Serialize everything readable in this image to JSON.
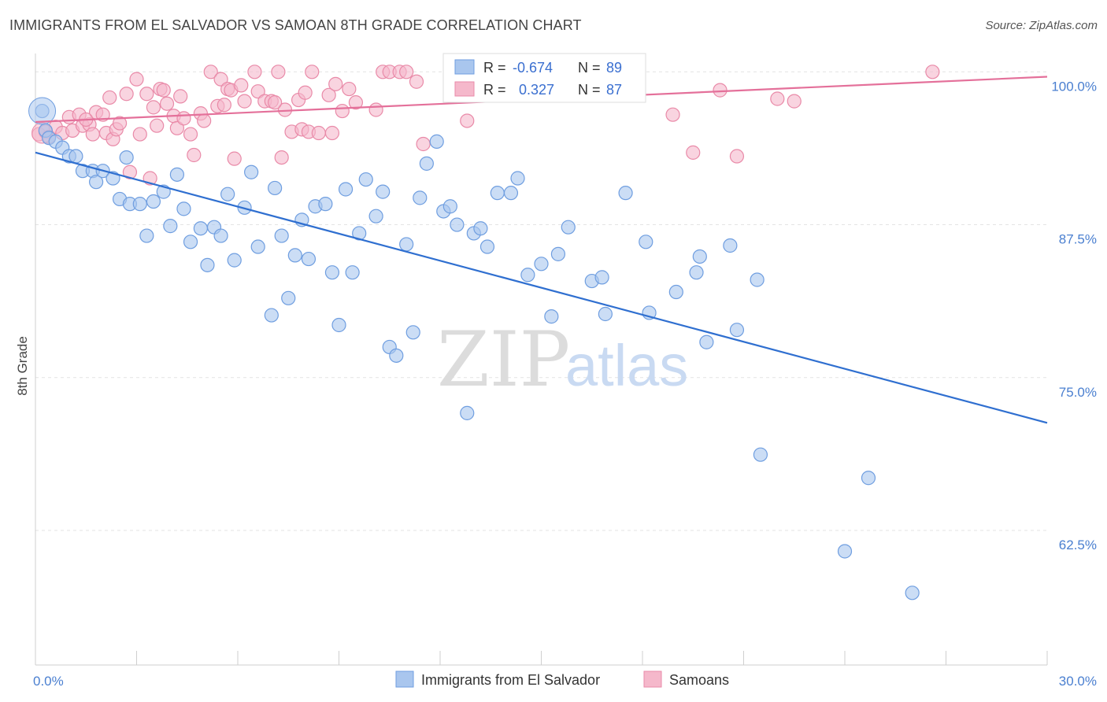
{
  "title": "IMMIGRANTS FROM EL SALVADOR VS SAMOAN 8TH GRADE CORRELATION CHART",
  "source": "Source: ZipAtlas.com",
  "watermark": {
    "zip": "ZIP",
    "atlas": "atlas"
  },
  "colors": {
    "blue_fill": "#a9c6ee",
    "blue_stroke": "#6f9ee0",
    "blue_line": "#2f6fd0",
    "pink_fill": "#f5b8cb",
    "pink_stroke": "#e98aa8",
    "pink_line": "#e4709a",
    "grid": "#e3e3e3",
    "axis_text": "#4a7fd0"
  },
  "chart_data": {
    "type": "scatter",
    "title": "IMMIGRANTS FROM EL SALVADOR VS SAMOAN 8TH GRADE CORRELATION CHART",
    "xlabel": "",
    "ylabel": "8th Grade",
    "xlim": [
      0,
      30
    ],
    "ylim": [
      51.5,
      101.5
    ],
    "x_tick_labels": [
      {
        "value": 0,
        "label": "0.0%"
      },
      {
        "value": 30,
        "label": "30.0%"
      }
    ],
    "y_ticks": [
      {
        "value": 100,
        "label": "100.0%"
      },
      {
        "value": 87.5,
        "label": "87.5%"
      },
      {
        "value": 75,
        "label": "75.0%"
      },
      {
        "value": 62.5,
        "label": "62.5%"
      }
    ],
    "grid": true,
    "legend_position": "bottom-center",
    "stats_position": "top-center",
    "series": [
      {
        "name": "Immigrants from El Salvador",
        "color": "blue",
        "R": "-0.674",
        "N": "89",
        "trend": {
          "x": [
            0,
            30
          ],
          "y": [
            93.4,
            71.3
          ]
        },
        "points": [
          [
            0.2,
            96.8
          ],
          [
            0.3,
            95.2
          ],
          [
            0.4,
            94.6
          ],
          [
            0.6,
            94.3
          ],
          [
            0.8,
            93.8
          ],
          [
            1.0,
            93.1
          ],
          [
            1.2,
            93.1
          ],
          [
            1.4,
            91.9
          ],
          [
            1.7,
            91.9
          ],
          [
            1.8,
            91.0
          ],
          [
            2.0,
            91.9
          ],
          [
            2.3,
            91.3
          ],
          [
            2.5,
            89.6
          ],
          [
            2.7,
            93.0
          ],
          [
            2.8,
            89.2
          ],
          [
            3.1,
            89.2
          ],
          [
            3.3,
            86.6
          ],
          [
            3.5,
            89.4
          ],
          [
            3.8,
            90.2
          ],
          [
            4.0,
            87.4
          ],
          [
            4.2,
            91.6
          ],
          [
            4.4,
            88.8
          ],
          [
            4.6,
            86.1
          ],
          [
            4.9,
            87.2
          ],
          [
            5.1,
            84.2
          ],
          [
            5.3,
            87.3
          ],
          [
            5.5,
            86.6
          ],
          [
            5.7,
            90.0
          ],
          [
            5.9,
            84.6
          ],
          [
            6.2,
            88.9
          ],
          [
            6.4,
            91.8
          ],
          [
            6.6,
            85.7
          ],
          [
            7.0,
            80.1
          ],
          [
            7.1,
            90.5
          ],
          [
            7.3,
            86.6
          ],
          [
            7.5,
            81.5
          ],
          [
            7.7,
            85.0
          ],
          [
            7.9,
            87.9
          ],
          [
            8.1,
            84.7
          ],
          [
            8.3,
            89.0
          ],
          [
            8.6,
            89.2
          ],
          [
            8.8,
            83.6
          ],
          [
            9.0,
            79.3
          ],
          [
            9.2,
            90.4
          ],
          [
            9.4,
            83.6
          ],
          [
            9.6,
            86.8
          ],
          [
            9.8,
            91.2
          ],
          [
            10.1,
            88.2
          ],
          [
            10.3,
            90.2
          ],
          [
            10.5,
            77.5
          ],
          [
            10.7,
            76.8
          ],
          [
            11.0,
            85.9
          ],
          [
            11.2,
            78.7
          ],
          [
            11.4,
            89.7
          ],
          [
            11.6,
            92.5
          ],
          [
            11.9,
            94.3
          ],
          [
            12.1,
            88.6
          ],
          [
            12.3,
            89.0
          ],
          [
            12.5,
            87.5
          ],
          [
            12.8,
            72.1
          ],
          [
            13.0,
            86.8
          ],
          [
            13.2,
            87.2
          ],
          [
            13.4,
            85.7
          ],
          [
            13.7,
            90.1
          ],
          [
            14.1,
            90.1
          ],
          [
            14.3,
            91.3
          ],
          [
            14.6,
            83.4
          ],
          [
            15.0,
            84.3
          ],
          [
            15.3,
            80.0
          ],
          [
            15.5,
            85.1
          ],
          [
            15.8,
            87.3
          ],
          [
            16.2,
            98.3
          ],
          [
            16.5,
            82.9
          ],
          [
            16.8,
            83.2
          ],
          [
            16.9,
            80.2
          ],
          [
            17.5,
            90.1
          ],
          [
            18.1,
            86.1
          ],
          [
            18.2,
            80.3
          ],
          [
            19.0,
            82.0
          ],
          [
            19.6,
            83.6
          ],
          [
            19.7,
            84.9
          ],
          [
            19.9,
            77.9
          ],
          [
            20.6,
            85.8
          ],
          [
            20.8,
            78.9
          ],
          [
            21.4,
            83.0
          ],
          [
            21.5,
            68.7
          ],
          [
            24.0,
            60.8
          ],
          [
            24.7,
            66.8
          ],
          [
            26.0,
            57.4
          ]
        ]
      },
      {
        "name": "Samoans",
        "color": "pink",
        "R": "0.327",
        "N": "87",
        "trend": {
          "x": [
            0,
            30
          ],
          "y": [
            95.9,
            99.6
          ]
        },
        "points": [
          [
            0.1,
            94.9
          ],
          [
            0.3,
            95.1
          ],
          [
            0.4,
            94.7
          ],
          [
            0.6,
            95.5
          ],
          [
            0.8,
            95.0
          ],
          [
            1.0,
            96.3
          ],
          [
            1.1,
            95.2
          ],
          [
            1.3,
            96.5
          ],
          [
            1.4,
            95.6
          ],
          [
            1.6,
            95.7
          ],
          [
            1.7,
            94.9
          ],
          [
            1.8,
            96.7
          ],
          [
            2.0,
            96.5
          ],
          [
            2.1,
            95.0
          ],
          [
            2.3,
            94.5
          ],
          [
            2.4,
            95.3
          ],
          [
            2.5,
            95.8
          ],
          [
            2.7,
            98.2
          ],
          [
            2.8,
            91.8
          ],
          [
            3.0,
            99.4
          ],
          [
            3.1,
            94.9
          ],
          [
            3.3,
            98.2
          ],
          [
            3.4,
            91.3
          ],
          [
            3.5,
            97.1
          ],
          [
            3.7,
            98.6
          ],
          [
            3.8,
            98.5
          ],
          [
            3.9,
            97.4
          ],
          [
            4.1,
            96.4
          ],
          [
            4.2,
            95.4
          ],
          [
            4.3,
            98.0
          ],
          [
            4.4,
            96.2
          ],
          [
            4.6,
            94.9
          ],
          [
            4.7,
            93.2
          ],
          [
            4.9,
            96.6
          ],
          [
            5.0,
            96.0
          ],
          [
            5.2,
            100.0
          ],
          [
            5.4,
            97.2
          ],
          [
            5.5,
            99.4
          ],
          [
            5.7,
            98.6
          ],
          [
            5.8,
            98.5
          ],
          [
            5.9,
            92.9
          ],
          [
            6.1,
            98.9
          ],
          [
            6.2,
            97.6
          ],
          [
            6.5,
            100.0
          ],
          [
            6.6,
            98.4
          ],
          [
            6.8,
            97.6
          ],
          [
            7.0,
            97.6
          ],
          [
            7.2,
            100.0
          ],
          [
            7.3,
            93.0
          ],
          [
            7.4,
            96.9
          ],
          [
            7.6,
            95.1
          ],
          [
            7.8,
            97.7
          ],
          [
            7.9,
            95.3
          ],
          [
            8.0,
            98.3
          ],
          [
            8.1,
            95.1
          ],
          [
            8.2,
            100.0
          ],
          [
            8.4,
            95.0
          ],
          [
            8.7,
            98.1
          ],
          [
            8.9,
            99.0
          ],
          [
            9.1,
            96.8
          ],
          [
            9.3,
            98.6
          ],
          [
            9.5,
            97.5
          ],
          [
            10.1,
            96.9
          ],
          [
            10.3,
            100.0
          ],
          [
            10.5,
            100.0
          ],
          [
            10.8,
            100.0
          ],
          [
            11.0,
            100.0
          ],
          [
            11.3,
            99.2
          ],
          [
            11.5,
            94.1
          ],
          [
            12.3,
            98.1
          ],
          [
            12.8,
            96.0
          ],
          [
            13.3,
            100.0
          ],
          [
            15.3,
            100.0
          ],
          [
            16.8,
            98.6
          ],
          [
            18.9,
            96.5
          ],
          [
            19.5,
            93.4
          ],
          [
            20.3,
            98.5
          ],
          [
            20.8,
            93.1
          ],
          [
            22.0,
            97.8
          ],
          [
            22.5,
            97.6
          ],
          [
            26.6,
            100.0
          ],
          [
            1.5,
            96.1
          ],
          [
            2.2,
            97.9
          ],
          [
            3.6,
            95.6
          ],
          [
            5.6,
            97.3
          ],
          [
            7.1,
            97.5
          ],
          [
            8.8,
            95.0
          ]
        ]
      }
    ]
  }
}
